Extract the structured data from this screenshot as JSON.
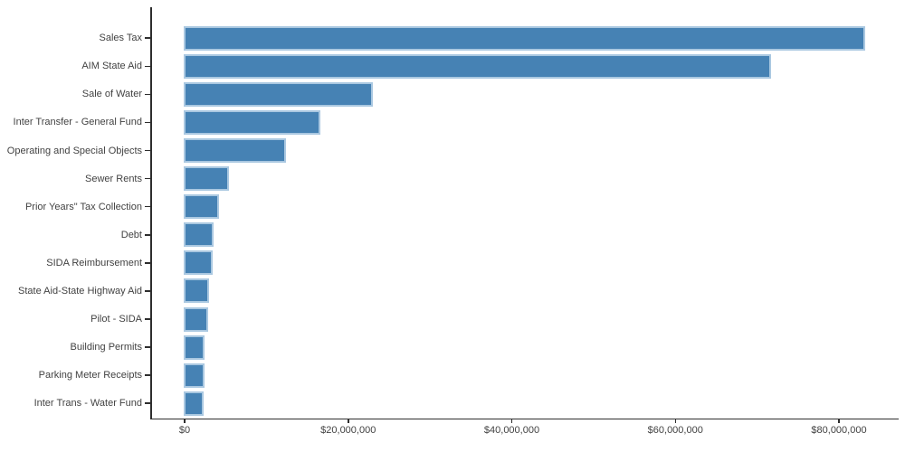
{
  "chart_data": {
    "type": "bar",
    "orientation": "horizontal",
    "title": "",
    "xlabel": "",
    "ylabel": "",
    "categories": [
      "Sales Tax",
      "AIM State Aid",
      "Sale of Water",
      "Inter Transfer - General Fund",
      "Operating and Special Objects",
      "Sewer Rents",
      "Prior Years\" Tax Collection",
      "Debt",
      "SIDA Reimbursement",
      "State Aid-State Highway Aid",
      "Pilot - SIDA",
      "Building Permits",
      "Parking Meter Receipts",
      "Inter Trans - Water Fund"
    ],
    "values": [
      83200000,
      71700000,
      23000000,
      16600000,
      12350000,
      5450000,
      4200000,
      3500000,
      3430000,
      3000000,
      2840000,
      2470000,
      2400000,
      2360000
    ],
    "x_ticks": [
      {
        "value": 0,
        "label": "$0"
      },
      {
        "value": 20000000,
        "label": "$20,000,000"
      },
      {
        "value": 40000000,
        "label": "$40,000,000"
      },
      {
        "value": 60000000,
        "label": "$60,000,000"
      },
      {
        "value": 80000000,
        "label": "$80,000,000"
      }
    ],
    "xlim": [
      0,
      87000000
    ],
    "grid": false,
    "legend": null,
    "bar_color": "#4682b4",
    "bar_border_color": "#aac8e1",
    "axis_color": "#2e2e2e",
    "text_color": "#424242"
  }
}
